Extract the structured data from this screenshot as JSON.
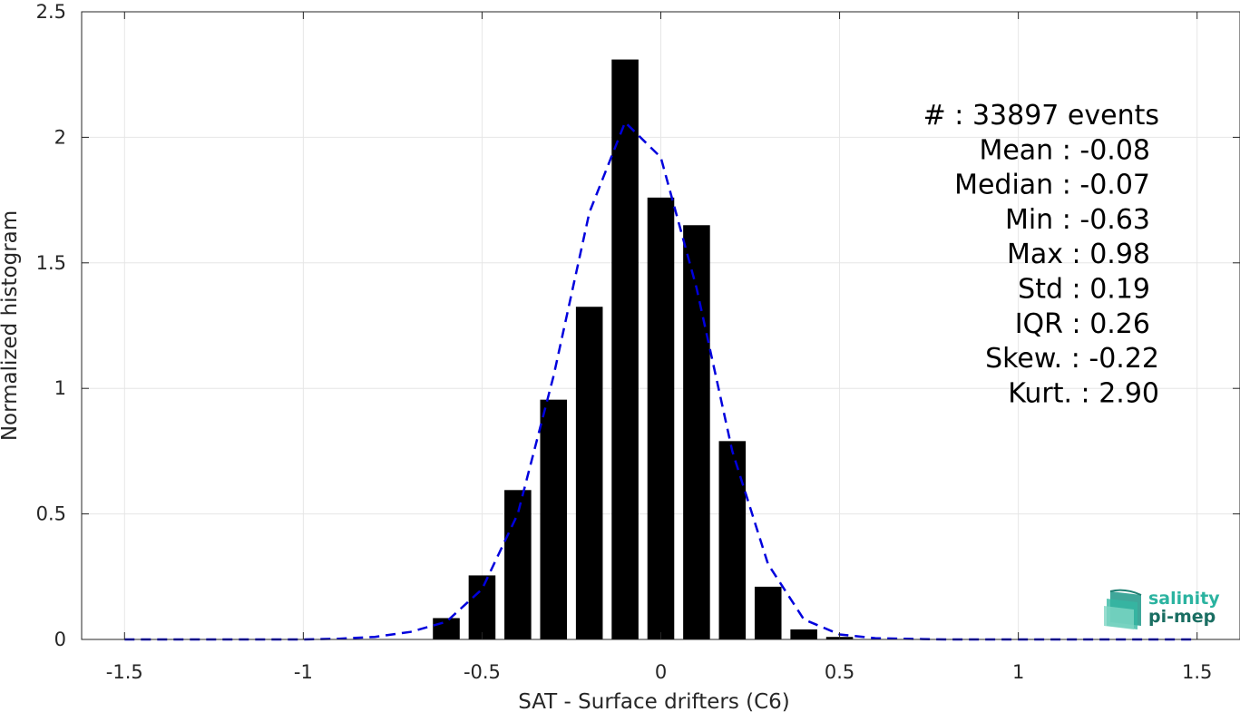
{
  "chart_data": {
    "type": "bar",
    "xlabel": "SAT - Surface drifters (C6)",
    "ylabel": "Normalized histogram",
    "xlim": [
      -1.62,
      1.62
    ],
    "ylim": [
      0,
      2.5
    ],
    "xticks": [
      -1.5,
      -1,
      -0.5,
      0,
      0.5,
      1,
      1.5
    ],
    "xtick_labels": [
      "-1.5",
      "-1",
      "-0.5",
      "0",
      "0.5",
      "1",
      "1.5"
    ],
    "yticks": [
      0,
      0.5,
      1,
      1.5,
      2,
      2.5
    ],
    "ytick_labels": [
      "0",
      "0.5",
      "1",
      "1.5",
      "2",
      "2.5"
    ],
    "grid": true,
    "bar_width": 0.075,
    "bar_color": "#000000",
    "bars": {
      "x": [
        -0.6,
        -0.5,
        -0.4,
        -0.3,
        -0.2,
        -0.1,
        0.0,
        0.1,
        0.2,
        0.3,
        0.4,
        0.5
      ],
      "values": [
        0.085,
        0.255,
        0.595,
        0.955,
        1.325,
        2.31,
        1.76,
        1.65,
        0.79,
        0.21,
        0.04,
        0.01
      ]
    },
    "fit_line": {
      "color": "#0000dd",
      "style": "dashed",
      "x": [
        -1.5,
        -1.4,
        -1.3,
        -1.2,
        -1.1,
        -1.0,
        -0.9,
        -0.8,
        -0.7,
        -0.6,
        -0.5,
        -0.4,
        -0.3,
        -0.2,
        -0.1,
        0.0,
        0.1,
        0.2,
        0.3,
        0.4,
        0.5,
        0.6,
        0.7,
        0.8,
        0.9,
        1.0,
        1.1,
        1.2,
        1.3,
        1.4,
        1.5
      ],
      "y": [
        0,
        0,
        0,
        0,
        0,
        0,
        0.003,
        0.01,
        0.03,
        0.07,
        0.2,
        0.5,
        1.05,
        1.7,
        2.06,
        1.92,
        1.4,
        0.75,
        0.3,
        0.08,
        0.02,
        0.005,
        0.002,
        0,
        0,
        0,
        0,
        0,
        0,
        0,
        0
      ]
    },
    "stats": [
      "#  : 33897 events",
      "Mean : -0.08",
      "Median : -0.07",
      "Min : -0.63",
      "Max : 0.98",
      "Std : 0.19",
      "IQR : 0.26",
      "Skew. : -0.22",
      "Kurt. : 2.90"
    ]
  },
  "logo": {
    "line1": "salinity",
    "line2": "pi-mep",
    "color_line1": "#2bb3a0",
    "color_line2": "#1a6e62"
  }
}
